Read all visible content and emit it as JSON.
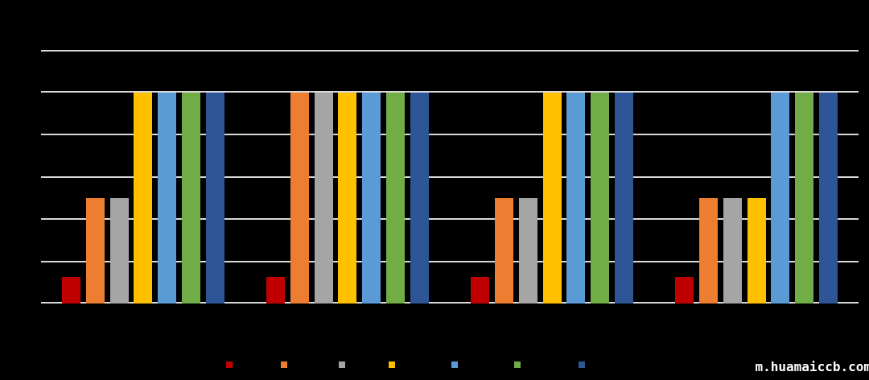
{
  "watermark": "m.huamaiccb.com",
  "background_color": "#000000",
  "chart_data": {
    "type": "bar",
    "title": "",
    "xlabel": "",
    "ylabel": "",
    "categories": [
      "",
      "",
      "",
      ""
    ],
    "series": [
      {
        "name": "",
        "color": "#C00000",
        "values": [
          12.5,
          12.5,
          12.5,
          12.5
        ]
      },
      {
        "name": "",
        "color": "#ED7D31",
        "values": [
          50,
          100,
          50,
          50
        ]
      },
      {
        "name": "",
        "color": "#A5A5A5",
        "values": [
          50,
          100,
          50,
          50
        ]
      },
      {
        "name": "",
        "color": "#FFC000",
        "values": [
          100,
          100,
          100,
          50
        ]
      },
      {
        "name": "",
        "color": "#5B9BD5",
        "values": [
          100,
          100,
          100,
          100
        ]
      },
      {
        "name": "",
        "color": "#70AD47",
        "values": [
          100,
          100,
          100,
          100
        ]
      },
      {
        "name": "",
        "color": "#2E5596",
        "values": [
          100,
          100,
          100,
          100
        ]
      }
    ],
    "ylim": [
      0,
      120
    ],
    "grid_step": 20,
    "grid": true,
    "gridline_color": "#D9D9D9",
    "axis_line_color": "#D9D9D9",
    "legend_position": "bottom",
    "tick_labels_visible": false,
    "legend_labels_visible": false
  }
}
